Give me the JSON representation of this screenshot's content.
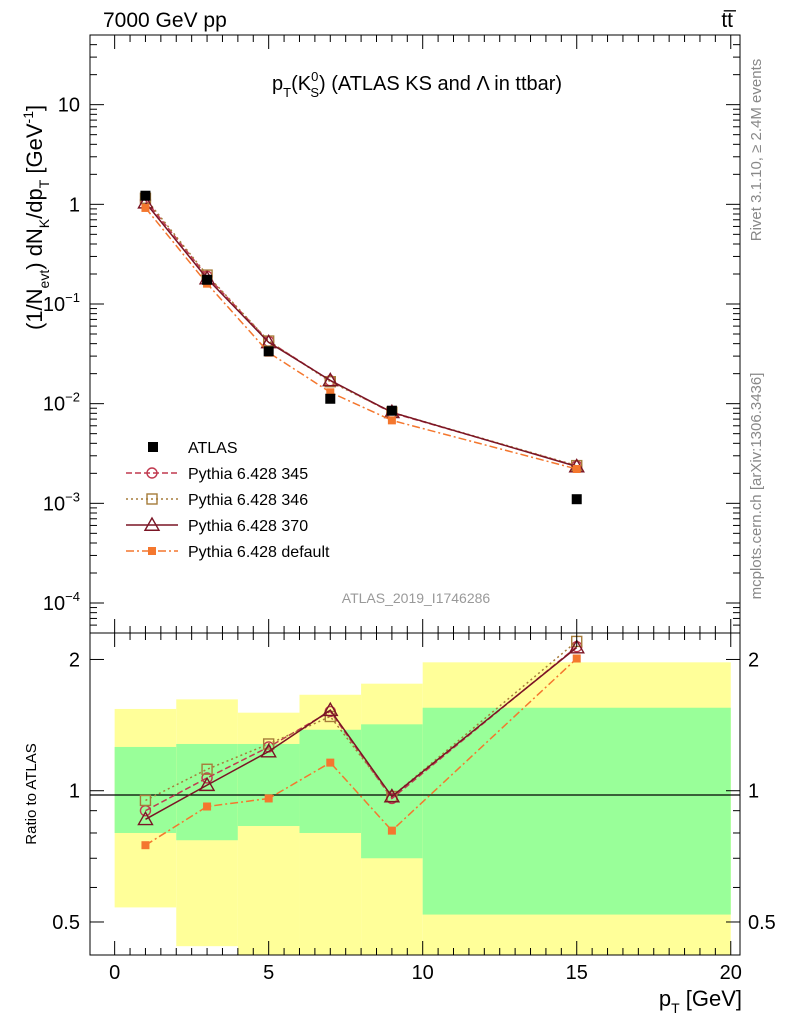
{
  "header": {
    "left": "7000 GeV pp",
    "right": "tt̅"
  },
  "side": {
    "rivet": "Rivet 3.1.10, ≥ 2.4M events",
    "mcplots": "mcplots.cern.ch [arXiv:1306.3436]"
  },
  "chart_data": [
    {
      "type": "line",
      "panel": "main",
      "title": "p_T(K^0_S) (ATLAS KS and Λ in ttbar)",
      "title_parts": {
        "p": "p",
        "T": "T",
        "open": "(K",
        "sup": "0",
        "sub": "S",
        "rest": ") (ATLAS KS and Λ in ttbar)"
      },
      "ylabel_parts": {
        "a": "(1/N",
        "b": "evt",
        "c": ") dN",
        "d": "K",
        "e": "/dp",
        "f": "T",
        "g": " [GeV",
        "h": "-1",
        "i": "]"
      },
      "yscale": "log",
      "ylim": [
        5e-05,
        50
      ],
      "xlim": [
        -0.8,
        20.3
      ],
      "ytick_labels": [
        {
          "value": 10,
          "mant": "10",
          "exp": ""
        },
        {
          "value": 1,
          "mant": "1",
          "exp": ""
        },
        {
          "value": 0.1,
          "mant": "10",
          "exp": "−1"
        },
        {
          "value": 0.01,
          "mant": "10",
          "exp": "−2"
        },
        {
          "value": 0.001,
          "mant": "10",
          "exp": "−3"
        },
        {
          "value": 0.0001,
          "mant": "10",
          "exp": "−4"
        }
      ],
      "watermark": "ATLAS_2019_I1746286",
      "legend_position": "lower-left",
      "data": {
        "name": "ATLAS",
        "color": "#000000",
        "x": [
          1,
          3,
          5,
          7,
          9,
          15
        ],
        "y": [
          1.22,
          0.175,
          0.0335,
          0.0112,
          0.0085,
          0.0011
        ]
      },
      "series": [
        {
          "name": "Pythia 6.428 345",
          "color": "#c0394f",
          "dash": "6,3",
          "marker": "circle",
          "x": [
            1,
            3,
            5,
            7,
            9,
            15
          ],
          "y": [
            1.1,
            0.19,
            0.0422,
            0.017,
            0.0081,
            0.00237
          ]
        },
        {
          "name": "Pythia 6.428 346",
          "color": "#a67c3a",
          "dash": "2,3",
          "marker": "square",
          "x": [
            1,
            3,
            5,
            7,
            9,
            15
          ],
          "y": [
            1.15,
            0.195,
            0.0425,
            0.0166,
            0.0082,
            0.00239
          ]
        },
        {
          "name": "Pythia 6.428 370",
          "color": "#7a1525",
          "dash": "",
          "marker": "triangle",
          "x": [
            1,
            3,
            5,
            7,
            9,
            15
          ],
          "y": [
            1.04,
            0.18,
            0.0412,
            0.0171,
            0.0082,
            0.00234
          ]
        },
        {
          "name": "Pythia 6.428 default",
          "color": "#f4772e",
          "dash": "8,3,2,3",
          "marker": "filled-square",
          "x": [
            1,
            3,
            5,
            7,
            9,
            15
          ],
          "y": [
            0.92,
            0.16,
            0.0325,
            0.013,
            0.0068,
            0.00221
          ]
        }
      ]
    },
    {
      "type": "line",
      "panel": "ratio",
      "ylabel": "Ratio to ATLAS",
      "xlabel_parts": {
        "p": "p",
        "T": "T",
        "unit": " [GeV]"
      },
      "yscale": "log",
      "ylim": [
        0.42,
        2.3
      ],
      "xlim": [
        -0.8,
        20.3
      ],
      "xticks": [
        0,
        5,
        10,
        15,
        20
      ],
      "yticks": [
        0.5,
        1,
        2
      ],
      "reference": 1,
      "bands": {
        "bins": [
          [
            0,
            2
          ],
          [
            2,
            4
          ],
          [
            4,
            6
          ],
          [
            6,
            8
          ],
          [
            8,
            10
          ],
          [
            10,
            20
          ]
        ],
        "outer": [
          [
            0.54,
            1.54
          ],
          [
            0.44,
            1.62
          ],
          [
            0.42,
            1.51
          ],
          [
            0.37,
            1.66
          ],
          [
            0.37,
            1.76
          ],
          [
            0.37,
            1.97
          ]
        ],
        "inner": [
          [
            0.8,
            1.26
          ],
          [
            0.77,
            1.28
          ],
          [
            0.83,
            1.28
          ],
          [
            0.8,
            1.38
          ],
          [
            0.7,
            1.42
          ],
          [
            0.52,
            1.55
          ]
        ],
        "outer_color": "#ffff99",
        "inner_color": "#99ff99"
      },
      "series": [
        {
          "name": "Pythia 6.428 345",
          "color": "#c0394f",
          "x": [
            1,
            3,
            5,
            7,
            9,
            15
          ],
          "y": [
            0.9,
            1.07,
            1.26,
            1.52,
            0.96,
            2.14
          ]
        },
        {
          "name": "Pythia 6.428 346",
          "color": "#a67c3a",
          "x": [
            1,
            3,
            5,
            7,
            9,
            15
          ],
          "y": [
            0.95,
            1.12,
            1.28,
            1.48,
            0.97,
            2.2
          ]
        },
        {
          "name": "Pythia 6.428 370",
          "color": "#7a1525",
          "x": [
            1,
            3,
            5,
            7,
            9,
            15
          ],
          "y": [
            0.86,
            1.03,
            1.23,
            1.53,
            0.97,
            2.13
          ]
        },
        {
          "name": "Pythia 6.428 default",
          "color": "#f4772e",
          "x": [
            1,
            3,
            5,
            7,
            9,
            15
          ],
          "y": [
            0.75,
            0.92,
            0.96,
            1.16,
            0.81,
            2.01
          ]
        }
      ]
    }
  ]
}
